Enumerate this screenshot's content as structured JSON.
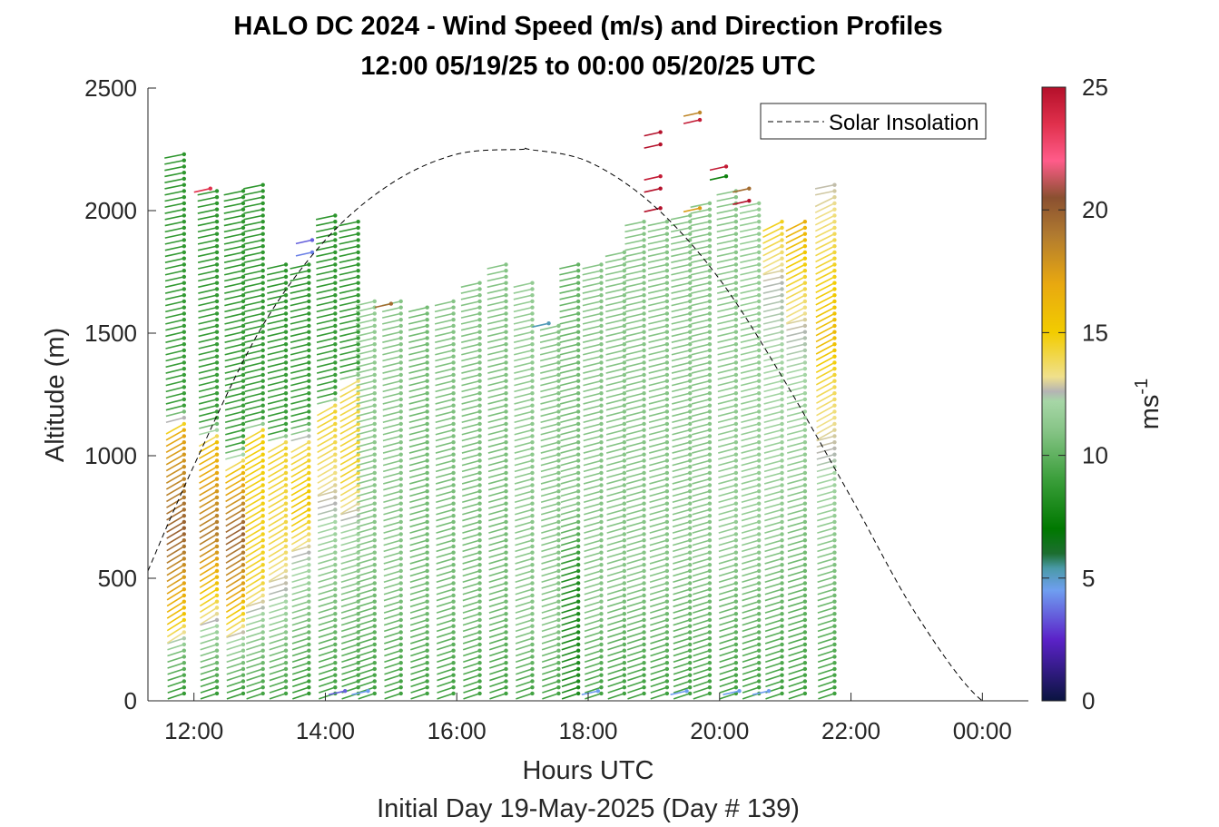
{
  "chart_data": {
    "type": "wind-barb-profile",
    "title": "HALO DC 2024 - Wind Speed (m/s) and Direction Profiles",
    "subtitle": "12:00 05/19/25 to 00:00 05/20/25  UTC",
    "xlabel": "Hours UTC",
    "xlabel2": "Initial Day 19-May-2025 (Day # 139)",
    "ylabel": "Altitude (m)",
    "xlim_hours": [
      11.3,
      24.7
    ],
    "ylim": [
      0,
      2500
    ],
    "xticks": [
      {
        "hour": 12,
        "label": "12:00"
      },
      {
        "hour": 14,
        "label": "14:00"
      },
      {
        "hour": 16,
        "label": "16:00"
      },
      {
        "hour": 18,
        "label": "18:00"
      },
      {
        "hour": 20,
        "label": "20:00"
      },
      {
        "hour": 22,
        "label": "22:00"
      },
      {
        "hour": 24,
        "label": "00:00"
      }
    ],
    "yticks": [
      0,
      500,
      1000,
      1500,
      2000,
      2500
    ],
    "grid": false,
    "legend": {
      "position": "top-right",
      "entries": [
        "Solar Insolation"
      ]
    },
    "colorbar": {
      "label": "ms",
      "label_exponent": "-1",
      "range": [
        0,
        25
      ],
      "ticks": [
        0,
        5,
        10,
        15,
        20,
        25
      ],
      "colormap_stops": [
        {
          "v": 0,
          "c": "#0a1440"
        },
        {
          "v": 2.5,
          "c": "#5b22c8"
        },
        {
          "v": 4.5,
          "c": "#6f9ef0"
        },
        {
          "v": 5.4,
          "c": "#4a9aa8"
        },
        {
          "v": 6.0,
          "c": "#1c6e30"
        },
        {
          "v": 7.0,
          "c": "#007800"
        },
        {
          "v": 9.0,
          "c": "#3a9e3a"
        },
        {
          "v": 11.0,
          "c": "#86c486"
        },
        {
          "v": 12.2,
          "c": "#a6d6a6"
        },
        {
          "v": 12.6,
          "c": "#b4b4b4"
        },
        {
          "v": 13.2,
          "c": "#f0e08c"
        },
        {
          "v": 15.0,
          "c": "#f2cc00"
        },
        {
          "v": 17.0,
          "c": "#e8a810"
        },
        {
          "v": 19.0,
          "c": "#b07a30"
        },
        {
          "v": 20.5,
          "c": "#8a5030"
        },
        {
          "v": 22.0,
          "c": "#ff5c8a"
        },
        {
          "v": 23.5,
          "c": "#e0304c"
        },
        {
          "v": 25.0,
          "c": "#b4102a"
        }
      ]
    },
    "solar_insolation": {
      "x_hours": [
        11.3,
        12.0,
        13.0,
        14.0,
        15.0,
        16.0,
        17.0,
        17.1,
        18.0,
        19.0,
        20.0,
        21.0,
        22.0,
        23.0,
        24.0,
        24.7
      ],
      "y": [
        530,
        960,
        1510,
        1880,
        2110,
        2230,
        2250,
        2250,
        2200,
        2020,
        1720,
        1300,
        830,
        350,
        0,
        0
      ]
    },
    "profiles": [
      {
        "hour": 11.85,
        "top": 2240,
        "segments": [
          [
            0,
            8.5
          ],
          [
            200,
            10.5
          ],
          [
            350,
            15.5
          ],
          [
            700,
            20
          ],
          [
            1100,
            17
          ],
          [
            1200,
            9
          ],
          [
            2300,
            8.5
          ]
        ]
      },
      {
        "hour": 12.35,
        "top": 2100,
        "segments": [
          [
            0,
            8.5
          ],
          [
            300,
            12
          ],
          [
            500,
            16
          ],
          [
            700,
            19
          ],
          [
            1050,
            16
          ],
          [
            1150,
            9
          ],
          [
            2150,
            8.5
          ]
        ]
      },
      {
        "hour": 12.75,
        "top": 2100,
        "segments": [
          [
            0,
            8.5
          ],
          [
            250,
            12
          ],
          [
            450,
            17
          ],
          [
            700,
            20
          ],
          [
            950,
            16
          ],
          [
            1050,
            9
          ],
          [
            2150,
            8.5
          ]
        ]
      },
      {
        "hour": 13.05,
        "top": 2110,
        "segments": [
          [
            0,
            9
          ],
          [
            350,
            12
          ],
          [
            500,
            14.5
          ],
          [
            1100,
            15
          ],
          [
            1150,
            9
          ],
          [
            2150,
            8.5
          ]
        ]
      },
      {
        "hour": 13.4,
        "top": 1800,
        "segments": [
          [
            0,
            9
          ],
          [
            450,
            12.5
          ],
          [
            650,
            14
          ],
          [
            1050,
            14.5
          ],
          [
            1100,
            9
          ],
          [
            1850,
            8.5
          ]
        ]
      },
      {
        "hour": 13.75,
        "top": 1800,
        "segments": [
          [
            0,
            8.5
          ],
          [
            600,
            12.5
          ],
          [
            800,
            15.5
          ],
          [
            1050,
            14
          ],
          [
            1150,
            9
          ],
          [
            1850,
            8.5
          ]
        ]
      },
      {
        "hour": 14.15,
        "top": 1990,
        "segments": [
          [
            0,
            9
          ],
          [
            700,
            12
          ],
          [
            1050,
            14
          ],
          [
            1200,
            14.5
          ],
          [
            1250,
            9
          ],
          [
            2050,
            8.5
          ]
        ]
      },
      {
        "hour": 14.5,
        "top": 1960,
        "segments": [
          [
            0,
            9
          ],
          [
            700,
            12
          ],
          [
            950,
            14.5
          ],
          [
            1300,
            14
          ],
          [
            1350,
            9
          ],
          [
            2000,
            8.5
          ]
        ]
      },
      {
        "hour": 14.75,
        "top": 1650,
        "segments": [
          [
            0,
            9
          ],
          [
            600,
            11
          ],
          [
            1700,
            11.5
          ]
        ]
      },
      {
        "hour": 15.15,
        "top": 1640,
        "segments": [
          [
            0,
            9
          ],
          [
            500,
            11
          ],
          [
            1700,
            11
          ]
        ]
      },
      {
        "hour": 15.55,
        "top": 1620,
        "segments": [
          [
            0,
            9
          ],
          [
            400,
            10.5
          ],
          [
            1700,
            10.5
          ]
        ]
      },
      {
        "hour": 15.95,
        "top": 1650,
        "segments": [
          [
            0,
            9
          ],
          [
            400,
            10.5
          ],
          [
            1700,
            11
          ]
        ]
      },
      {
        "hour": 16.35,
        "top": 1710,
        "segments": [
          [
            0,
            9
          ],
          [
            350,
            10.5
          ],
          [
            1750,
            11
          ]
        ]
      },
      {
        "hour": 16.75,
        "top": 1780,
        "segments": [
          [
            0,
            9
          ],
          [
            400,
            10.5
          ],
          [
            1800,
            11
          ]
        ]
      },
      {
        "hour": 17.15,
        "top": 1710,
        "segments": [
          [
            0,
            9
          ],
          [
            300,
            11
          ],
          [
            1750,
            11.5
          ]
        ]
      },
      {
        "hour": 17.55,
        "top": 1540,
        "segments": [
          [
            0,
            9
          ],
          [
            300,
            11
          ],
          [
            1600,
            11
          ]
        ]
      },
      {
        "hour": 17.85,
        "top": 1800,
        "segments": [
          [
            0,
            8
          ],
          [
            500,
            8
          ],
          [
            800,
            11
          ],
          [
            1850,
            10
          ]
        ]
      },
      {
        "hour": 18.2,
        "top": 1800,
        "segments": [
          [
            0,
            9
          ],
          [
            400,
            11
          ],
          [
            1850,
            11
          ]
        ]
      },
      {
        "hour": 18.55,
        "top": 1830,
        "segments": [
          [
            0,
            9
          ],
          [
            500,
            11
          ],
          [
            1900,
            11
          ]
        ]
      },
      {
        "hour": 18.85,
        "top": 1960,
        "segments": [
          [
            0,
            9
          ],
          [
            500,
            11
          ],
          [
            2000,
            11
          ]
        ]
      },
      {
        "hour": 19.2,
        "top": 1960,
        "segments": [
          [
            0,
            9
          ],
          [
            500,
            11
          ],
          [
            2000,
            11
          ]
        ]
      },
      {
        "hour": 19.55,
        "top": 2000,
        "segments": [
          [
            0,
            9
          ],
          [
            600,
            11
          ],
          [
            2050,
            11
          ]
        ]
      },
      {
        "hour": 19.85,
        "top": 2040,
        "segments": [
          [
            0,
            9
          ],
          [
            600,
            11
          ],
          [
            2100,
            11
          ]
        ]
      },
      {
        "hour": 20.25,
        "top": 2100,
        "segments": [
          [
            0,
            9
          ],
          [
            700,
            11.5
          ],
          [
            2150,
            11
          ]
        ]
      },
      {
        "hour": 20.6,
        "top": 2050,
        "segments": [
          [
            0,
            9
          ],
          [
            700,
            11.5
          ],
          [
            2100,
            11.5
          ]
        ]
      },
      {
        "hour": 20.95,
        "top": 1960,
        "segments": [
          [
            0,
            9
          ],
          [
            800,
            11.5
          ],
          [
            1700,
            12.5
          ],
          [
            2000,
            15
          ]
        ]
      },
      {
        "hour": 21.3,
        "top": 1970,
        "segments": [
          [
            0,
            9
          ],
          [
            800,
            11
          ],
          [
            1500,
            12.5
          ],
          [
            1800,
            15
          ],
          [
            2000,
            17
          ]
        ]
      },
      {
        "hour": 21.75,
        "top": 2110,
        "segments": [
          [
            0,
            9
          ],
          [
            900,
            12
          ],
          [
            1300,
            14
          ],
          [
            1500,
            16
          ],
          [
            2150,
            12.5
          ]
        ]
      }
    ],
    "isolated_barbs": [
      {
        "hour": 12.25,
        "alt": 2090,
        "speed": 23.5
      },
      {
        "hour": 13.8,
        "alt": 1880,
        "speed": 3.5
      },
      {
        "hour": 13.8,
        "alt": 1830,
        "speed": 4.0
      },
      {
        "hour": 15.0,
        "alt": 1620,
        "speed": 19.5
      },
      {
        "hour": 17.4,
        "alt": 1540,
        "speed": 5.2
      },
      {
        "hour": 19.1,
        "alt": 2320,
        "speed": 25
      },
      {
        "hour": 19.1,
        "alt": 2270,
        "speed": 25
      },
      {
        "hour": 19.1,
        "alt": 2140,
        "speed": 24.5
      },
      {
        "hour": 19.1,
        "alt": 2090,
        "speed": 25
      },
      {
        "hour": 19.1,
        "alt": 2010,
        "speed": 25
      },
      {
        "hour": 19.7,
        "alt": 2400,
        "speed": 18.5
      },
      {
        "hour": 19.7,
        "alt": 2370,
        "speed": 24.5
      },
      {
        "hour": 19.7,
        "alt": 2010,
        "speed": 17.5
      },
      {
        "hour": 20.1,
        "alt": 2180,
        "speed": 24.5
      },
      {
        "hour": 20.1,
        "alt": 2140,
        "speed": 7.5
      },
      {
        "hour": 20.45,
        "alt": 2090,
        "speed": 19.5
      },
      {
        "hour": 20.45,
        "alt": 2040,
        "speed": 25
      },
      {
        "hour": 14.3,
        "alt": 40,
        "speed": 3.5
      },
      {
        "hour": 14.65,
        "alt": 40,
        "speed": 4.5
      },
      {
        "hour": 18.15,
        "alt": 40,
        "speed": 4.5
      },
      {
        "hour": 19.5,
        "alt": 40,
        "speed": 4.5
      },
      {
        "hour": 20.3,
        "alt": 40,
        "speed": 4.5
      },
      {
        "hour": 20.75,
        "alt": 40,
        "speed": 4.5
      }
    ]
  }
}
